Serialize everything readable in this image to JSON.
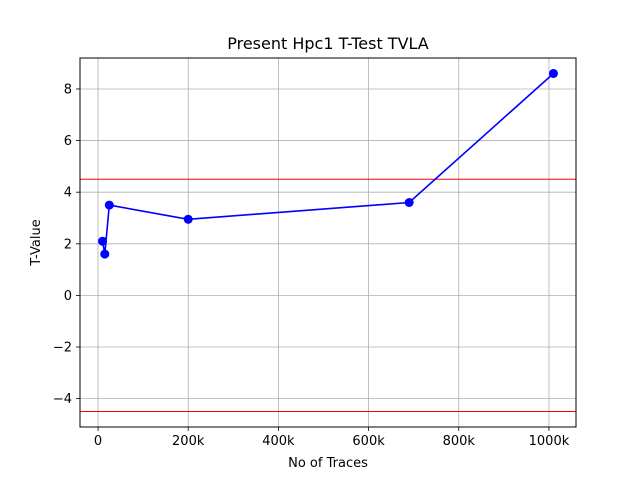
{
  "chart_data": {
    "type": "line",
    "title": "Present Hpc1 T-Test TVLA",
    "xlabel": "No of Traces",
    "ylabel": "T-Value",
    "xlim": [
      -40000,
      1060000
    ],
    "ylim": [
      -5.1,
      9.2
    ],
    "xticks": [
      0,
      200000,
      400000,
      600000,
      800000,
      1000000
    ],
    "xtick_labels": [
      "0",
      "200k",
      "400k",
      "600k",
      "800k",
      "1000k"
    ],
    "yticks": [
      -4,
      -2,
      0,
      2,
      4,
      6,
      8
    ],
    "ytick_labels": [
      "−4",
      "−2",
      "0",
      "2",
      "4",
      "6",
      "8"
    ],
    "grid": true,
    "series": [
      {
        "color": "#0000ff",
        "marker": "circle",
        "x": [
          10000,
          15000,
          25000,
          200000,
          690000,
          1010000
        ],
        "y": [
          2.1,
          1.6,
          3.5,
          2.95,
          3.6,
          8.6
        ]
      }
    ],
    "thresholds": [
      {
        "y": 4.5,
        "color": "#ff0000"
      },
      {
        "y": -4.5,
        "color": "#ff0000"
      }
    ]
  }
}
